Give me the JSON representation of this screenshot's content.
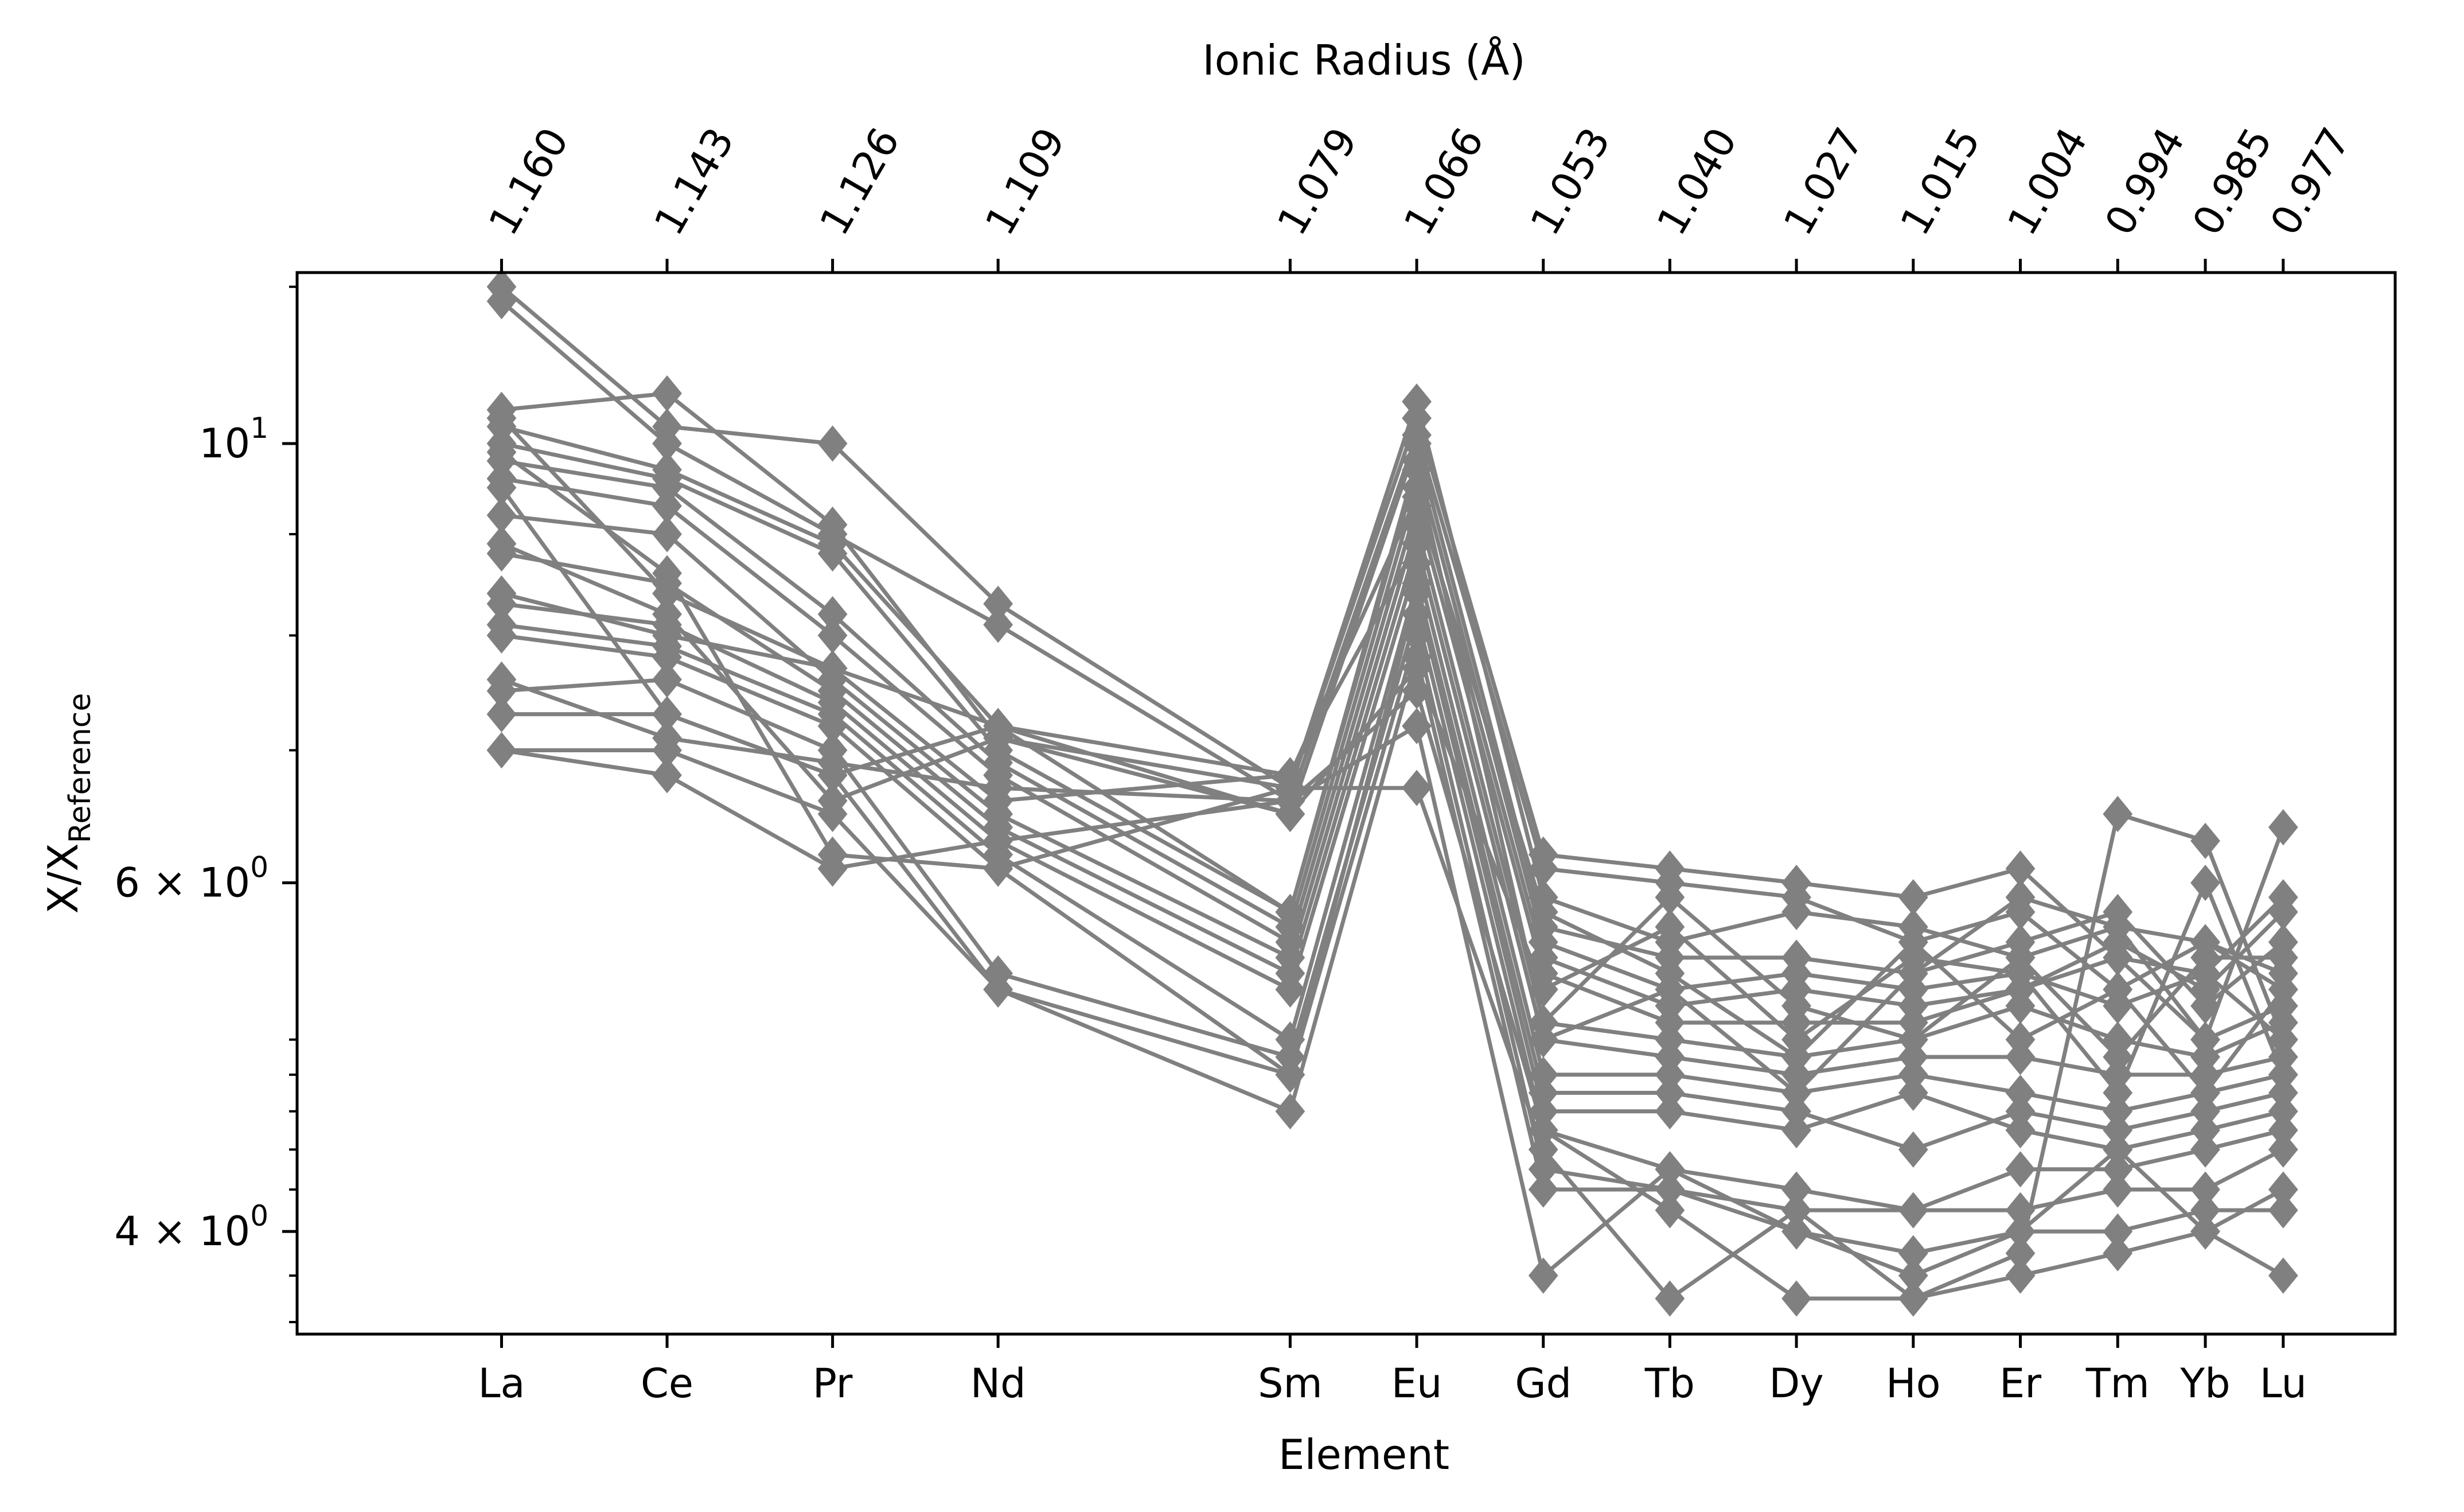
{
  "chart_data": {
    "type": "line",
    "xlabel": "Element",
    "ylabel": "X/X",
    "ylabel_subscript": "Reference",
    "top_axis_label": "Ionic Radius (Å)",
    "y_scale": "log",
    "ylim": [
      3.55,
      12.2
    ],
    "y_ticks": [
      {
        "value": 10,
        "base": "10",
        "exp": "1",
        "prefix": ""
      },
      {
        "value": 6,
        "base": "10",
        "exp": "0",
        "prefix": "6 × "
      },
      {
        "value": 4,
        "base": "10",
        "exp": "0",
        "prefix": "4 × "
      }
    ],
    "y_minor_ticks": [
      3.6,
      3.8,
      4.2,
      4.4,
      4.6,
      4.8,
      5,
      7,
      8,
      9,
      12
    ],
    "x": [
      1.16,
      1.143,
      1.126,
      1.109,
      1.079,
      1.066,
      1.053,
      1.04,
      1.027,
      1.015,
      1.004,
      0.994,
      0.985,
      0.977
    ],
    "x_reversed": true,
    "categories": [
      "La",
      "Ce",
      "Pr",
      "Nd",
      "Sm",
      "Eu",
      "Gd",
      "Tb",
      "Dy",
      "Ho",
      "Er",
      "Tm",
      "Yb",
      "Lu"
    ],
    "top_tick_labels": [
      "1.160",
      "1.143",
      "1.126",
      "1.109",
      "1.079",
      "1.066",
      "1.053",
      "1.040",
      "1.027",
      "1.015",
      "1.004",
      "0.994",
      "0.985",
      "0.977"
    ],
    "line_color": "#808080",
    "marker": "diamond",
    "grid": false,
    "series": [
      {
        "values": [
          12.0,
          10.2,
          10.0,
          8.3,
          6.7,
          10.3,
          6.2,
          6.1,
          6.0,
          5.9,
          6.1,
          5.5,
          5.4,
          5.0
        ]
      },
      {
        "values": [
          11.8,
          10.0,
          9.0,
          8.1,
          6.6,
          10.1,
          6.1,
          6.0,
          5.9,
          5.6,
          5.8,
          5.3,
          5.6,
          5.4
        ]
      },
      {
        "values": [
          10.4,
          10.6,
          9.1,
          7.1,
          6.7,
          10.5,
          5.9,
          5.6,
          5.8,
          5.7,
          5.5,
          5.7,
          5.6,
          5.3
        ]
      },
      {
        "values": [
          10.2,
          9.7,
          8.9,
          7.2,
          6.5,
          10.0,
          5.7,
          5.5,
          5.5,
          5.4,
          5.6,
          5.8,
          5.2,
          5.6
        ]
      },
      {
        "values": [
          10.0,
          9.6,
          8.8,
          7.0,
          5.8,
          9.8,
          5.6,
          5.3,
          5.4,
          5.3,
          5.4,
          5.2,
          5.4,
          5.9
        ]
      },
      {
        "values": [
          9.8,
          9.5,
          8.2,
          6.9,
          5.7,
          9.5,
          5.5,
          5.2,
          5.3,
          5.2,
          5.3,
          5.6,
          5.3,
          5.8
        ]
      },
      {
        "values": [
          9.6,
          9.3,
          8.0,
          6.8,
          5.6,
          9.3,
          5.4,
          5.1,
          5.1,
          5.1,
          5.3,
          5.5,
          5.0,
          5.2
        ]
      },
      {
        "values": [
          9.2,
          9.0,
          7.6,
          6.5,
          5.5,
          9.1,
          5.1,
          5.0,
          4.9,
          5.0,
          5.2,
          5.0,
          4.9,
          5.1
        ]
      },
      {
        "values": [
          8.8,
          8.5,
          7.5,
          6.4,
          5.4,
          8.9,
          5.0,
          4.9,
          4.8,
          4.9,
          4.9,
          4.8,
          4.8,
          4.9
        ]
      },
      {
        "values": [
          8.3,
          8.1,
          7.4,
          6.3,
          5.3,
          8.7,
          4.8,
          4.8,
          4.7,
          4.8,
          4.7,
          4.6,
          4.7,
          4.8
        ]
      },
      {
        "values": [
          8.1,
          7.9,
          7.3,
          6.2,
          5.0,
          8.5,
          4.7,
          4.7,
          4.6,
          4.4,
          4.6,
          4.5,
          4.6,
          4.7
        ]
      },
      {
        "values": [
          8.0,
          7.8,
          7.2,
          6.1,
          4.8,
          8.4,
          4.6,
          4.6,
          4.5,
          4.7,
          4.5,
          4.4,
          4.5,
          4.6
        ]
      },
      {
        "values": [
          7.5,
          7.6,
          7.0,
          5.4,
          4.9,
          8.2,
          4.5,
          4.3,
          4.2,
          4.1,
          4.3,
          4.3,
          4.4,
          4.5
        ]
      },
      {
        "values": [
          7.3,
          7.3,
          6.8,
          5.3,
          4.8,
          8.0,
          4.3,
          4.2,
          4.1,
          4.1,
          4.1,
          4.2,
          4.2,
          4.4
        ]
      },
      {
        "values": [
          7.0,
          7.0,
          6.5,
          5.3,
          4.6,
          7.8,
          4.2,
          4.2,
          4.0,
          3.9,
          4.0,
          4.0,
          4.1,
          4.1
        ]
      },
      {
        "values": [
          7.6,
          7.1,
          6.9,
          6.7,
          6.6,
          7.5,
          4.5,
          4.1,
          3.7,
          3.7,
          3.8,
          3.9,
          4.0,
          4.2
        ]
      },
      {
        "values": [
          7.0,
          6.8,
          6.1,
          6.3,
          6.6,
          7.2,
          3.8,
          4.3,
          4.0,
          3.8,
          4.0,
          4.4,
          4.0,
          3.8
        ]
      },
      {
        "values": [
          9.9,
          8.6,
          6.2,
          6.1,
          6.7,
          6.7,
          4.4,
          3.7,
          4.1,
          3.7,
          3.9,
          6.5,
          6.3,
          5.0
        ]
      },
      {
        "values": [
          9.5,
          7.3,
          6.8,
          7.2,
          6.8,
          8.9,
          5.0,
          5.3,
          4.7,
          5.4,
          5.9,
          5.7,
          5.0,
          6.4
        ]
      },
      {
        "values": [
          8.9,
          8.2,
          6.6,
          7.1,
          6.5,
          7.7,
          5.3,
          5.7,
          5.0,
          5.5,
          5.4,
          4.7,
          6.0,
          4.8
        ]
      },
      {
        "values": [
          8.4,
          8.0,
          7.7,
          6.6,
          6.8,
          9.4,
          5.8,
          5.4,
          4.9,
          5.6,
          5.0,
          5.3,
          4.7,
          5.3
        ]
      },
      {
        "values": [
          10.3,
          8.4,
          7.7,
          7.2,
          5.8,
          9.7,
          5.1,
          5.9,
          5.2,
          5.0,
          5.5,
          4.9,
          5.5,
          5.5
        ]
      }
    ]
  }
}
